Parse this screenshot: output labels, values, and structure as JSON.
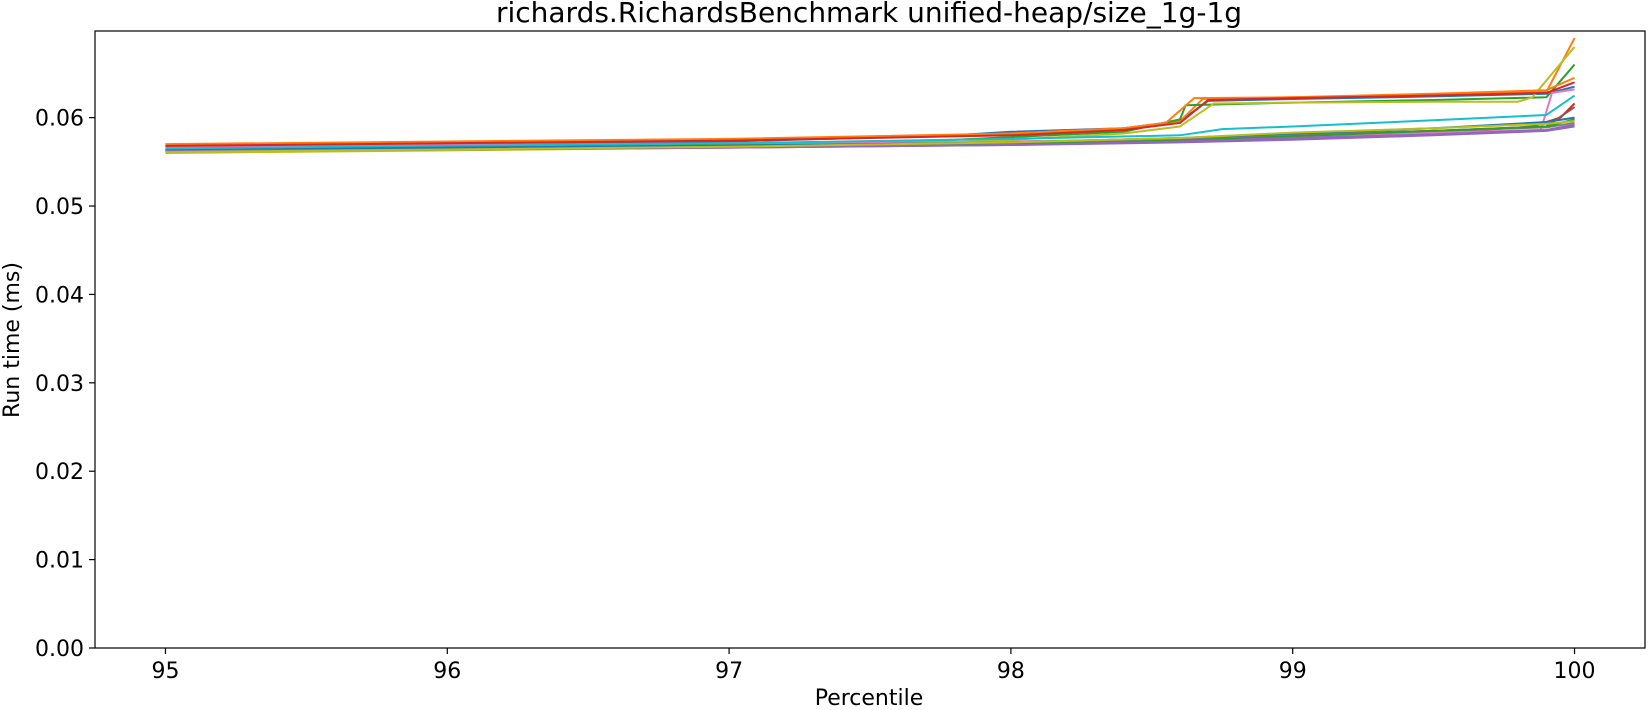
{
  "chart_data": {
    "type": "line",
    "title": "richards.RichardsBenchmark unified-heap/size_1g-1g",
    "xlabel": "Percentile",
    "ylabel": "Run time (ms)",
    "xlim": [
      94.75,
      100.25
    ],
    "ylim": [
      0.0,
      0.0698
    ],
    "xticks": [
      95,
      96,
      97,
      98,
      99,
      100
    ],
    "xtick_labels": [
      "95",
      "96",
      "97",
      "98",
      "99",
      "100"
    ],
    "yticks": [
      0.0,
      0.01,
      0.02,
      0.03,
      0.04,
      0.05,
      0.06
    ],
    "ytick_labels": [
      "0.00",
      "0.01",
      "0.02",
      "0.03",
      "0.04",
      "0.05",
      "0.06"
    ],
    "grid": false,
    "legend": "none",
    "series": [
      {
        "color": "#1f77b4",
        "x": [
          95,
          96,
          97,
          97.8,
          98,
          98.4,
          98.6,
          98.7,
          99,
          99.5,
          99.9,
          100
        ],
        "values": [
          0.0567,
          0.057,
          0.0573,
          0.058,
          0.0584,
          0.0588,
          0.0596,
          0.0619,
          0.0621,
          0.0624,
          0.0627,
          0.0635
        ]
      },
      {
        "color": "#ff7f0e",
        "x": [
          95,
          96,
          97,
          97.8,
          98,
          98.4,
          98.6,
          98.68,
          99,
          99.5,
          99.9,
          100
        ],
        "values": [
          0.0569,
          0.0572,
          0.0575,
          0.058,
          0.0582,
          0.0588,
          0.0596,
          0.0621,
          0.0623,
          0.0626,
          0.0629,
          0.069
        ]
      },
      {
        "color": "#2ca02c",
        "x": [
          95,
          96,
          97,
          97.8,
          98,
          98.4,
          98.6,
          98.62,
          99,
          99.5,
          99.9,
          100
        ],
        "values": [
          0.0562,
          0.0566,
          0.0569,
          0.0575,
          0.0578,
          0.0584,
          0.0598,
          0.0614,
          0.0617,
          0.062,
          0.0623,
          0.066
        ]
      },
      {
        "color": "#d62728",
        "x": [
          95,
          96,
          97,
          98,
          98.6,
          99,
          99.5,
          99.85,
          99.95,
          100
        ],
        "values": [
          0.0563,
          0.0566,
          0.0568,
          0.0571,
          0.0574,
          0.0577,
          0.0582,
          0.059,
          0.06,
          0.0616
        ]
      },
      {
        "color": "#9467bd",
        "x": [
          95,
          96,
          97,
          98,
          98.6,
          99,
          99.5,
          99.9,
          100
        ],
        "values": [
          0.0561,
          0.0564,
          0.0566,
          0.0569,
          0.0572,
          0.0575,
          0.058,
          0.0585,
          0.059
        ]
      },
      {
        "color": "#8c564b",
        "x": [
          95,
          96,
          97,
          98,
          98.6,
          99,
          99.5,
          99.9,
          100
        ],
        "values": [
          0.0563,
          0.0565,
          0.0567,
          0.0571,
          0.0575,
          0.0581,
          0.0585,
          0.059,
          0.0612
        ]
      },
      {
        "color": "#e377c2",
        "x": [
          95,
          96,
          97,
          98,
          98.6,
          99,
          99.5,
          99.88,
          99.92,
          100
        ],
        "values": [
          0.0566,
          0.0569,
          0.0571,
          0.0573,
          0.0576,
          0.0579,
          0.0583,
          0.0586,
          0.0628,
          0.0632
        ]
      },
      {
        "color": "#7f7f7f",
        "x": [
          95,
          96,
          97,
          98,
          98.6,
          99,
          99.5,
          99.9,
          100
        ],
        "values": [
          0.0564,
          0.0566,
          0.0568,
          0.0572,
          0.0576,
          0.058,
          0.0585,
          0.0589,
          0.0594
        ]
      },
      {
        "color": "#bcbd22",
        "x": [
          95,
          96,
          97,
          97.8,
          98,
          98.4,
          98.6,
          98.72,
          99,
          99.5,
          99.8,
          99.85,
          100
        ],
        "values": [
          0.056,
          0.0563,
          0.0566,
          0.0572,
          0.0575,
          0.0582,
          0.059,
          0.0616,
          0.0617,
          0.0618,
          0.0618,
          0.0623,
          0.068
        ]
      },
      {
        "color": "#17becf",
        "x": [
          95,
          96,
          97,
          98,
          98.6,
          98.75,
          99,
          99.5,
          99.9,
          100
        ],
        "values": [
          0.0565,
          0.0568,
          0.0571,
          0.0576,
          0.058,
          0.0587,
          0.059,
          0.0597,
          0.0603,
          0.0625
        ]
      },
      {
        "color": "#1f77b4",
        "x": [
          95,
          96,
          97,
          98,
          98.6,
          99,
          99.5,
          99.9,
          100
        ],
        "values": [
          0.0563,
          0.0566,
          0.0568,
          0.0572,
          0.0577,
          0.0582,
          0.0588,
          0.0595,
          0.06
        ]
      },
      {
        "color": "#ff7f0e",
        "x": [
          95,
          96,
          97,
          98,
          98.4,
          98.55,
          98.65,
          99,
          99.5,
          99.9,
          100
        ],
        "values": [
          0.057,
          0.0573,
          0.0576,
          0.0582,
          0.0588,
          0.0594,
          0.0622,
          0.0623,
          0.0627,
          0.0631,
          0.0645
        ]
      },
      {
        "color": "#2ca02c",
        "x": [
          95,
          96,
          97,
          98,
          98.6,
          99,
          99.5,
          99.9,
          100
        ],
        "values": [
          0.0562,
          0.0564,
          0.0567,
          0.057,
          0.0574,
          0.0579,
          0.0585,
          0.059,
          0.0598
        ]
      },
      {
        "color": "#d62728",
        "x": [
          95,
          96,
          97,
          98,
          98.4,
          98.6,
          98.7,
          99,
          99.5,
          99.9,
          100
        ],
        "values": [
          0.0568,
          0.0571,
          0.0574,
          0.058,
          0.0586,
          0.0594,
          0.062,
          0.0622,
          0.0625,
          0.0628,
          0.064
        ]
      },
      {
        "color": "#9467bd",
        "x": [
          95,
          96,
          97,
          98,
          98.6,
          99,
          99.5,
          99.9,
          100
        ],
        "values": [
          0.0562,
          0.0564,
          0.0566,
          0.0569,
          0.0573,
          0.0577,
          0.0581,
          0.0586,
          0.0592
        ]
      },
      {
        "color": "#bcbd22",
        "x": [
          95,
          96,
          97,
          98,
          98.6,
          99,
          99.5,
          99.9,
          100
        ],
        "values": [
          0.0561,
          0.0564,
          0.0567,
          0.0572,
          0.0577,
          0.0583,
          0.0588,
          0.0593,
          0.0596
        ]
      }
    ]
  }
}
